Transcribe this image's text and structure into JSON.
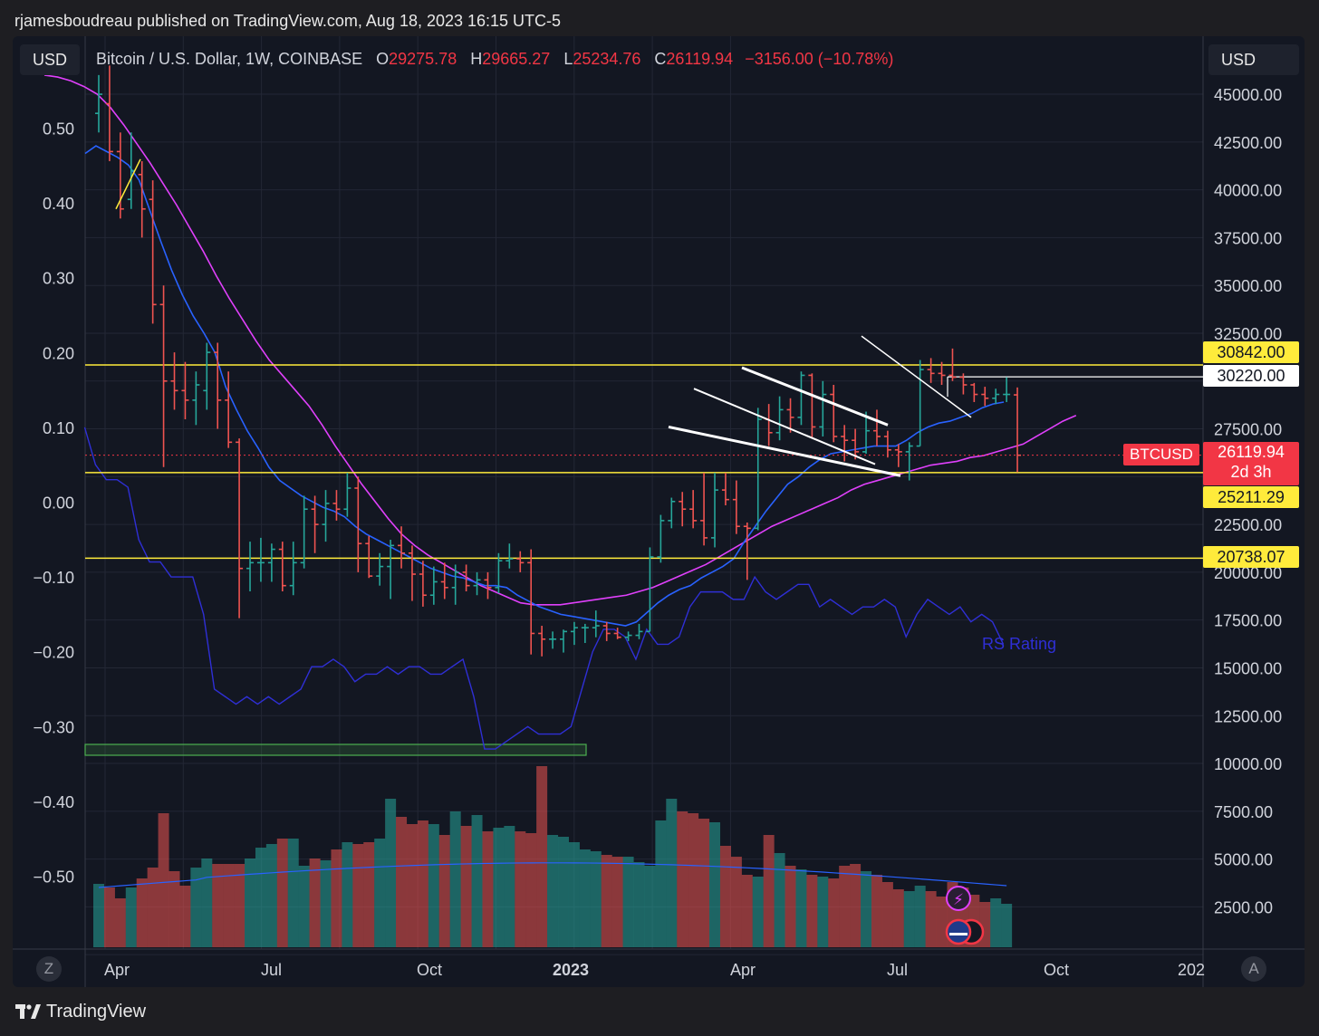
{
  "publisher": "rjamesboudreau published on TradingView.com, Aug 18, 2023 16:15 UTC-5",
  "currency_left": "USD",
  "currency_right": "USD",
  "legend": {
    "symbol": "Bitcoin / U.S. Dollar, 1W, COINBASE",
    "open_label": "O",
    "open": "29275.78",
    "high_label": "H",
    "high": "29665.27",
    "low_label": "L",
    "low": "25234.76",
    "close_label": "C",
    "close": "26119.94",
    "change": "−3156.00 (−10.78%)"
  },
  "price_axis": [
    "45000.00",
    "42500.00",
    "40000.00",
    "37500.00",
    "35000.00",
    "32500.00",
    "27500.00",
    "22500.00",
    "20000.00",
    "17500.00",
    "15000.00",
    "12500.00",
    "10000.00",
    "7500.00",
    "5000.00",
    "2500.00"
  ],
  "rs_axis": [
    "0.50",
    "0.40",
    "0.30",
    "0.20",
    "0.10",
    "0.00",
    "−0.10",
    "−0.20",
    "−0.30",
    "−0.40",
    "−0.50"
  ],
  "time_axis": [
    "Apr",
    "Jul",
    "Oct",
    "2023",
    "Apr",
    "Jul",
    "Oct",
    "202"
  ],
  "level_tags": [
    "30842.00",
    "30220.00",
    "25211.29",
    "20738.07"
  ],
  "last_price": {
    "label": "BTCUSD",
    "value": "26119.94",
    "countdown": "2d 3h"
  },
  "rs_label": "RS Rating",
  "buttons": {
    "left": "Z",
    "right": "A"
  },
  "brand": "TradingView",
  "colors": {
    "up": "#26a69a",
    "down": "#ef5350",
    "level": "#ffeb3b",
    "ema_fast": "#2962ff",
    "ema_slow": "#e040fb",
    "rs_line": "#2f2fd6",
    "vol_ma": "#2962ff",
    "background": "#131722"
  },
  "chart_data": {
    "type": "candlestick",
    "timeframe": "1W",
    "y_range": [
      0,
      46000
    ],
    "levels": [
      30842.0,
      30220.0,
      25211.29,
      20738.07
    ],
    "candles": [
      {
        "o": 44000,
        "h": 46000,
        "l": 43000,
        "c": 45000
      },
      {
        "o": 44500,
        "h": 46500,
        "l": 41500,
        "c": 42000
      },
      {
        "o": 42000,
        "h": 43000,
        "l": 38500,
        "c": 39000
      },
      {
        "o": 39500,
        "h": 43000,
        "l": 39000,
        "c": 41000
      },
      {
        "o": 40800,
        "h": 41500,
        "l": 37500,
        "c": 39000
      },
      {
        "o": 39500,
        "h": 40500,
        "l": 33000,
        "c": 34000
      },
      {
        "o": 34000,
        "h": 35000,
        "l": 25500,
        "c": 30000
      },
      {
        "o": 30000,
        "h": 31500,
        "l": 28500,
        "c": 29500
      },
      {
        "o": 29500,
        "h": 31000,
        "l": 28000,
        "c": 29000
      },
      {
        "o": 29000,
        "h": 30500,
        "l": 27700,
        "c": 29800
      },
      {
        "o": 29500,
        "h": 32000,
        "l": 28500,
        "c": 31500
      },
      {
        "o": 31500,
        "h": 32000,
        "l": 27500,
        "c": 29000
      },
      {
        "o": 29000,
        "h": 30500,
        "l": 26500,
        "c": 26800
      },
      {
        "o": 26800,
        "h": 27000,
        "l": 17600,
        "c": 20200
      },
      {
        "o": 20200,
        "h": 21600,
        "l": 19000,
        "c": 20500
      },
      {
        "o": 20500,
        "h": 21800,
        "l": 19500,
        "c": 20500
      },
      {
        "o": 20500,
        "h": 21500,
        "l": 19500,
        "c": 21200
      },
      {
        "o": 21200,
        "h": 21600,
        "l": 19000,
        "c": 19300
      },
      {
        "o": 19300,
        "h": 21600,
        "l": 18800,
        "c": 20500
      },
      {
        "o": 20500,
        "h": 24000,
        "l": 20200,
        "c": 23300
      },
      {
        "o": 23300,
        "h": 24000,
        "l": 21000,
        "c": 22500
      },
      {
        "o": 22500,
        "h": 24300,
        "l": 21600,
        "c": 23600
      },
      {
        "o": 23600,
        "h": 24300,
        "l": 22700,
        "c": 23300
      },
      {
        "o": 23300,
        "h": 25200,
        "l": 22900,
        "c": 24400
      },
      {
        "o": 24400,
        "h": 25000,
        "l": 20000,
        "c": 21500
      },
      {
        "o": 21500,
        "h": 21900,
        "l": 19700,
        "c": 19800
      },
      {
        "o": 19800,
        "h": 21000,
        "l": 19300,
        "c": 20300
      },
      {
        "o": 20300,
        "h": 21700,
        "l": 18600,
        "c": 21400
      },
      {
        "o": 21400,
        "h": 22400,
        "l": 20200,
        "c": 21000
      },
      {
        "o": 21000,
        "h": 21400,
        "l": 18500,
        "c": 19900
      },
      {
        "o": 19900,
        "h": 20600,
        "l": 18200,
        "c": 18800
      },
      {
        "o": 18800,
        "h": 20300,
        "l": 18300,
        "c": 19500
      },
      {
        "o": 19500,
        "h": 20500,
        "l": 18600,
        "c": 19200
      },
      {
        "o": 19200,
        "h": 20400,
        "l": 18300,
        "c": 20000
      },
      {
        "o": 20000,
        "h": 20400,
        "l": 19000,
        "c": 19300
      },
      {
        "o": 19300,
        "h": 20000,
        "l": 18800,
        "c": 19600
      },
      {
        "o": 19600,
        "h": 20000,
        "l": 18600,
        "c": 19200
      },
      {
        "o": 19200,
        "h": 21000,
        "l": 18900,
        "c": 20600
      },
      {
        "o": 20600,
        "h": 21500,
        "l": 20200,
        "c": 20700
      },
      {
        "o": 20700,
        "h": 21100,
        "l": 20000,
        "c": 20500
      },
      {
        "o": 20500,
        "h": 21200,
        "l": 15700,
        "c": 16800
      },
      {
        "o": 16800,
        "h": 17200,
        "l": 15600,
        "c": 16500
      },
      {
        "o": 16500,
        "h": 16900,
        "l": 16000,
        "c": 16500
      },
      {
        "o": 16500,
        "h": 17000,
        "l": 15800,
        "c": 16900
      },
      {
        "o": 16900,
        "h": 17400,
        "l": 16200,
        "c": 17100
      },
      {
        "o": 17100,
        "h": 17300,
        "l": 16300,
        "c": 17100
      },
      {
        "o": 17100,
        "h": 18000,
        "l": 16600,
        "c": 17200
      },
      {
        "o": 17200,
        "h": 17400,
        "l": 16400,
        "c": 16800
      },
      {
        "o": 16800,
        "h": 17100,
        "l": 16500,
        "c": 16600
      },
      {
        "o": 16600,
        "h": 16900,
        "l": 16400,
        "c": 16700
      },
      {
        "o": 16700,
        "h": 17300,
        "l": 16500,
        "c": 16900
      },
      {
        "o": 16900,
        "h": 21300,
        "l": 16900,
        "c": 20800
      },
      {
        "o": 20800,
        "h": 23000,
        "l": 20500,
        "c": 22700
      },
      {
        "o": 22700,
        "h": 23900,
        "l": 22300,
        "c": 23700
      },
      {
        "o": 23700,
        "h": 24200,
        "l": 22400,
        "c": 23300
      },
      {
        "o": 23300,
        "h": 24300,
        "l": 22300,
        "c": 22700
      },
      {
        "o": 22700,
        "h": 25200,
        "l": 21400,
        "c": 21800
      },
      {
        "o": 21800,
        "h": 25200,
        "l": 21300,
        "c": 24300
      },
      {
        "o": 24300,
        "h": 25200,
        "l": 23500,
        "c": 23800
      },
      {
        "o": 23800,
        "h": 24800,
        "l": 22000,
        "c": 22400
      },
      {
        "o": 22400,
        "h": 22600,
        "l": 19600,
        "c": 22300
      },
      {
        "o": 22300,
        "h": 28600,
        "l": 22200,
        "c": 28000
      },
      {
        "o": 28000,
        "h": 28800,
        "l": 26600,
        "c": 27300
      },
      {
        "o": 27300,
        "h": 29200,
        "l": 26900,
        "c": 28500
      },
      {
        "o": 28500,
        "h": 29100,
        "l": 27300,
        "c": 28100
      },
      {
        "o": 28100,
        "h": 30500,
        "l": 27700,
        "c": 30300
      },
      {
        "o": 30300,
        "h": 30400,
        "l": 27000,
        "c": 27600
      },
      {
        "o": 27600,
        "h": 30000,
        "l": 27100,
        "c": 29300
      },
      {
        "o": 29300,
        "h": 29800,
        "l": 26800,
        "c": 27100
      },
      {
        "o": 27100,
        "h": 27700,
        "l": 25800,
        "c": 26900
      },
      {
        "o": 26900,
        "h": 27500,
        "l": 25900,
        "c": 26300
      },
      {
        "o": 26300,
        "h": 28400,
        "l": 26200,
        "c": 27400
      },
      {
        "o": 27400,
        "h": 28500,
        "l": 26600,
        "c": 27100
      },
      {
        "o": 27100,
        "h": 27400,
        "l": 26000,
        "c": 26400
      },
      {
        "o": 26400,
        "h": 26700,
        "l": 25500,
        "c": 26300
      },
      {
        "o": 26300,
        "h": 26800,
        "l": 24800,
        "c": 26600
      },
      {
        "o": 26600,
        "h": 31100,
        "l": 26600,
        "c": 30600
      },
      {
        "o": 30600,
        "h": 31200,
        "l": 29900,
        "c": 30400
      },
      {
        "o": 30400,
        "h": 31000,
        "l": 29800,
        "c": 30300
      },
      {
        "o": 30300,
        "h": 31700,
        "l": 30000,
        "c": 30200
      },
      {
        "o": 30200,
        "h": 30400,
        "l": 29300,
        "c": 29800
      },
      {
        "o": 29800,
        "h": 29900,
        "l": 28900,
        "c": 29300
      },
      {
        "o": 29300,
        "h": 29700,
        "l": 28700,
        "c": 29100
      },
      {
        "o": 29100,
        "h": 29600,
        "l": 28800,
        "c": 29300
      },
      {
        "o": 29300,
        "h": 30200,
        "l": 28900,
        "c": 29300
      },
      {
        "o": 29275.78,
        "h": 29665.27,
        "l": 25234.76,
        "c": 26119.94
      }
    ],
    "ema_fast": [
      41900,
      42300,
      42000,
      41700,
      41300,
      40500,
      38900,
      37300,
      35800,
      34500,
      33400,
      32500,
      31500,
      29700,
      28500,
      27400,
      26500,
      25500,
      24800,
      24400,
      24000,
      23700,
      23400,
      23200,
      22900,
      22400,
      22000,
      21700,
      21400,
      21100,
      20800,
      20500,
      20200,
      20000,
      19800,
      19700,
      19500,
      19300,
      19300,
      19200,
      18800,
      18500,
      18200,
      18000,
      17800,
      17700,
      17600,
      17500,
      17400,
      17300,
      17200,
      17400,
      17900,
      18400,
      18800,
      19100,
      19300,
      19700,
      20000,
      20300,
      20700,
      21600,
      22400,
      23200,
      23900,
      24600,
      25000,
      25500,
      25900,
      26200,
      26300,
      26400,
      26500,
      26600,
      26600,
      26600,
      26900,
      27300,
      27600,
      27800,
      27900,
      28100,
      28300,
      28600,
      28800,
      28900
    ],
    "ema_slow": [
      46000,
      45900,
      45700,
      45400,
      45000,
      44300,
      43400,
      42400,
      41400,
      40300,
      39200,
      38000,
      36800,
      35500,
      34300,
      33200,
      32100,
      31100,
      30300,
      29500,
      28700,
      27700,
      26600,
      25600,
      24600,
      23700,
      22800,
      22000,
      21400,
      20900,
      20500,
      20100,
      19700,
      19300,
      19000,
      18700,
      18400,
      18300,
      18300,
      18300,
      18400,
      18500,
      18600,
      18700,
      18800,
      19000,
      19200,
      19500,
      19800,
      20100,
      20400,
      20800,
      21200,
      21600,
      22000,
      22400,
      22700,
      23000,
      23300,
      23600,
      23900,
      24300,
      24600,
      24800,
      25000,
      25200,
      25400,
      25600,
      25700,
      25800,
      26000,
      26100,
      26300,
      26500,
      26700,
      27100,
      27500,
      27900,
      28200
    ],
    "rs_rating": [
      0.1,
      0.05,
      0.03,
      0.03,
      0.02,
      -0.05,
      -0.08,
      -0.08,
      -0.1,
      -0.1,
      -0.1,
      -0.15,
      -0.25,
      -0.26,
      -0.27,
      -0.26,
      -0.27,
      -0.26,
      -0.27,
      -0.26,
      -0.25,
      -0.22,
      -0.22,
      -0.21,
      -0.22,
      -0.24,
      -0.23,
      -0.23,
      -0.22,
      -0.23,
      -0.22,
      -0.22,
      -0.23,
      -0.23,
      -0.22,
      -0.21,
      -0.26,
      -0.33,
      -0.33,
      -0.32,
      -0.31,
      -0.3,
      -0.31,
      -0.31,
      -0.31,
      -0.3,
      -0.25,
      -0.2,
      -0.17,
      -0.17,
      -0.18,
      -0.21,
      -0.17,
      -0.19,
      -0.19,
      -0.18,
      -0.14,
      -0.12,
      -0.12,
      -0.12,
      -0.13,
      -0.13,
      -0.1,
      -0.12,
      -0.13,
      -0.12,
      -0.11,
      -0.11,
      -0.14,
      -0.13,
      -0.14,
      -0.15,
      -0.14,
      -0.14,
      -0.13,
      -0.14,
      -0.18,
      -0.15,
      -0.13,
      -0.14,
      -0.15,
      -0.14,
      -0.16,
      -0.15,
      -0.16,
      -0.19
    ],
    "volume_relative": [
      0.35,
      0.33,
      0.27,
      0.33,
      0.38,
      0.44,
      0.74,
      0.42,
      0.34,
      0.44,
      0.49,
      0.46,
      0.46,
      0.46,
      0.49,
      0.55,
      0.57,
      0.6,
      0.6,
      0.45,
      0.49,
      0.48,
      0.54,
      0.58,
      0.57,
      0.58,
      0.6,
      0.82,
      0.72,
      0.68,
      0.7,
      0.68,
      0.62,
      0.75,
      0.67,
      0.73,
      0.64,
      0.66,
      0.67,
      0.64,
      0.63,
      1.0,
      0.62,
      0.61,
      0.58,
      0.54,
      0.53,
      0.51,
      0.5,
      0.5,
      0.47,
      0.45,
      0.7,
      0.82,
      0.75,
      0.74,
      0.71,
      0.69,
      0.56,
      0.5,
      0.4,
      0.39,
      0.62,
      0.52,
      0.45,
      0.43,
      0.4,
      0.39,
      0.38,
      0.45,
      0.46,
      0.42,
      0.4,
      0.36,
      0.32,
      0.31,
      0.34,
      0.31,
      0.28,
      0.36,
      0.33,
      0.29,
      0.25,
      0.27,
      0.24
    ]
  }
}
